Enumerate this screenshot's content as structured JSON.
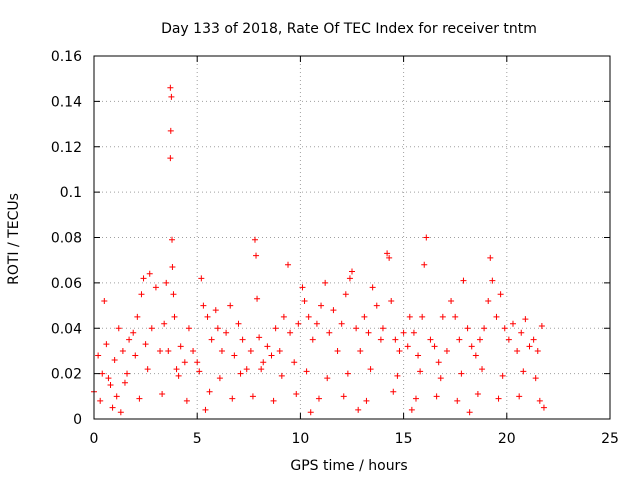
{
  "chart_data": {
    "type": "scatter",
    "title": "Day 133 of 2018, Rate Of TEC Index for receiver tntm",
    "xlabel": "GPS time / hours",
    "ylabel": "ROTI / TECUs",
    "xlim": [
      0,
      25
    ],
    "ylim": [
      0,
      0.16
    ],
    "x_ticks": [
      0,
      5,
      10,
      15,
      20,
      25
    ],
    "y_ticks": [
      0,
      0.02,
      0.04,
      0.06,
      0.08,
      0.1,
      0.12,
      0.14,
      0.16
    ],
    "x_tick_labels": [
      "0",
      "5",
      "10",
      "15",
      "20",
      "25"
    ],
    "y_tick_labels": [
      "0",
      "0.02",
      "0.04",
      "0.06",
      "0.08",
      "0.1",
      "0.12",
      "0.14",
      "0.16"
    ],
    "grid": true,
    "marker": "+",
    "color": "#ff0000",
    "series": [
      {
        "name": "ROTI",
        "points": [
          [
            0.0,
            0.012
          ],
          [
            0.2,
            0.028
          ],
          [
            0.4,
            0.02
          ],
          [
            0.5,
            0.052
          ],
          [
            0.6,
            0.033
          ],
          [
            0.8,
            0.015
          ],
          [
            1.0,
            0.026
          ],
          [
            1.2,
            0.04
          ],
          [
            1.4,
            0.03
          ],
          [
            1.5,
            0.016
          ],
          [
            1.7,
            0.035
          ],
          [
            1.9,
            0.038
          ],
          [
            2.0,
            0.028
          ],
          [
            2.1,
            0.045
          ],
          [
            2.3,
            0.055
          ],
          [
            2.4,
            0.062
          ],
          [
            2.5,
            0.033
          ],
          [
            2.7,
            0.064
          ],
          [
            2.8,
            0.04
          ],
          [
            3.0,
            0.058
          ],
          [
            3.2,
            0.03
          ],
          [
            3.4,
            0.042
          ],
          [
            3.5,
            0.06
          ],
          [
            3.6,
            0.03
          ],
          [
            3.7,
            0.146
          ],
          [
            3.75,
            0.142
          ],
          [
            3.72,
            0.127
          ],
          [
            3.7,
            0.115
          ],
          [
            3.78,
            0.079
          ],
          [
            3.8,
            0.067
          ],
          [
            3.85,
            0.055
          ],
          [
            3.9,
            0.045
          ],
          [
            4.0,
            0.022
          ],
          [
            4.2,
            0.032
          ],
          [
            4.4,
            0.025
          ],
          [
            4.6,
            0.04
          ],
          [
            4.8,
            0.03
          ],
          [
            5.0,
            0.025
          ],
          [
            5.2,
            0.062
          ],
          [
            5.3,
            0.05
          ],
          [
            5.5,
            0.045
          ],
          [
            5.7,
            0.035
          ],
          [
            5.9,
            0.048
          ],
          [
            6.0,
            0.04
          ],
          [
            6.2,
            0.03
          ],
          [
            6.4,
            0.038
          ],
          [
            6.6,
            0.05
          ],
          [
            6.8,
            0.028
          ],
          [
            7.0,
            0.042
          ],
          [
            7.2,
            0.035
          ],
          [
            7.4,
            0.022
          ],
          [
            7.6,
            0.03
          ],
          [
            7.8,
            0.079
          ],
          [
            7.85,
            0.072
          ],
          [
            7.9,
            0.053
          ],
          [
            8.0,
            0.036
          ],
          [
            8.2,
            0.025
          ],
          [
            8.4,
            0.032
          ],
          [
            8.6,
            0.028
          ],
          [
            8.8,
            0.04
          ],
          [
            9.0,
            0.03
          ],
          [
            9.2,
            0.045
          ],
          [
            9.4,
            0.068
          ],
          [
            9.5,
            0.038
          ],
          [
            9.7,
            0.025
          ],
          [
            9.9,
            0.042
          ],
          [
            10.1,
            0.058
          ],
          [
            10.2,
            0.052
          ],
          [
            10.4,
            0.045
          ],
          [
            10.6,
            0.035
          ],
          [
            10.8,
            0.042
          ],
          [
            11.0,
            0.05
          ],
          [
            11.2,
            0.06
          ],
          [
            11.4,
            0.038
          ],
          [
            11.6,
            0.048
          ],
          [
            11.8,
            0.03
          ],
          [
            12.0,
            0.042
          ],
          [
            12.2,
            0.055
          ],
          [
            12.4,
            0.062
          ],
          [
            12.5,
            0.065
          ],
          [
            12.7,
            0.04
          ],
          [
            12.9,
            0.03
          ],
          [
            13.1,
            0.045
          ],
          [
            13.3,
            0.038
          ],
          [
            13.5,
            0.058
          ],
          [
            13.7,
            0.05
          ],
          [
            13.9,
            0.035
          ],
          [
            14.0,
            0.04
          ],
          [
            14.2,
            0.073
          ],
          [
            14.3,
            0.071
          ],
          [
            14.4,
            0.052
          ],
          [
            14.6,
            0.035
          ],
          [
            14.8,
            0.03
          ],
          [
            15.0,
            0.038
          ],
          [
            15.2,
            0.032
          ],
          [
            15.3,
            0.045
          ],
          [
            15.5,
            0.038
          ],
          [
            15.7,
            0.028
          ],
          [
            15.9,
            0.045
          ],
          [
            16.0,
            0.068
          ],
          [
            16.1,
            0.08
          ],
          [
            16.3,
            0.035
          ],
          [
            16.5,
            0.032
          ],
          [
            16.7,
            0.025
          ],
          [
            16.9,
            0.045
          ],
          [
            17.1,
            0.03
          ],
          [
            17.3,
            0.052
          ],
          [
            17.5,
            0.045
          ],
          [
            17.7,
            0.035
          ],
          [
            17.9,
            0.061
          ],
          [
            18.1,
            0.04
          ],
          [
            18.3,
            0.032
          ],
          [
            18.5,
            0.028
          ],
          [
            18.7,
            0.035
          ],
          [
            18.9,
            0.04
          ],
          [
            19.1,
            0.052
          ],
          [
            19.2,
            0.071
          ],
          [
            19.3,
            0.061
          ],
          [
            19.5,
            0.045
          ],
          [
            19.7,
            0.055
          ],
          [
            19.9,
            0.04
          ],
          [
            20.1,
            0.035
          ],
          [
            20.3,
            0.042
          ],
          [
            20.5,
            0.03
          ],
          [
            20.7,
            0.038
          ],
          [
            20.9,
            0.044
          ],
          [
            21.1,
            0.032
          ],
          [
            21.3,
            0.035
          ],
          [
            21.5,
            0.03
          ],
          [
            21.7,
            0.041
          ],
          [
            0.3,
            0.008
          ],
          [
            1.1,
            0.01
          ],
          [
            2.2,
            0.009
          ],
          [
            3.3,
            0.011
          ],
          [
            4.5,
            0.008
          ],
          [
            5.6,
            0.012
          ],
          [
            6.7,
            0.009
          ],
          [
            7.7,
            0.01
          ],
          [
            8.7,
            0.008
          ],
          [
            9.8,
            0.011
          ],
          [
            10.9,
            0.009
          ],
          [
            12.1,
            0.01
          ],
          [
            13.2,
            0.008
          ],
          [
            14.5,
            0.012
          ],
          [
            15.6,
            0.009
          ],
          [
            16.6,
            0.01
          ],
          [
            17.6,
            0.008
          ],
          [
            18.6,
            0.011
          ],
          [
            19.6,
            0.009
          ],
          [
            20.6,
            0.01
          ],
          [
            21.6,
            0.008
          ],
          [
            0.7,
            0.018
          ],
          [
            1.6,
            0.02
          ],
          [
            2.6,
            0.022
          ],
          [
            4.1,
            0.019
          ],
          [
            5.1,
            0.021
          ],
          [
            6.1,
            0.018
          ],
          [
            7.1,
            0.02
          ],
          [
            8.1,
            0.022
          ],
          [
            9.1,
            0.019
          ],
          [
            10.3,
            0.021
          ],
          [
            11.3,
            0.018
          ],
          [
            12.3,
            0.02
          ],
          [
            13.4,
            0.022
          ],
          [
            14.7,
            0.019
          ],
          [
            15.8,
            0.021
          ],
          [
            16.8,
            0.018
          ],
          [
            17.8,
            0.02
          ],
          [
            18.8,
            0.022
          ],
          [
            19.8,
            0.019
          ],
          [
            20.8,
            0.021
          ],
          [
            21.4,
            0.018
          ],
          [
            1.3,
            0.003
          ],
          [
            5.4,
            0.004
          ],
          [
            10.5,
            0.003
          ],
          [
            15.4,
            0.004
          ],
          [
            18.2,
            0.003
          ],
          [
            21.8,
            0.005
          ],
          [
            0.9,
            0.005
          ],
          [
            12.8,
            0.004
          ]
        ]
      }
    ]
  }
}
